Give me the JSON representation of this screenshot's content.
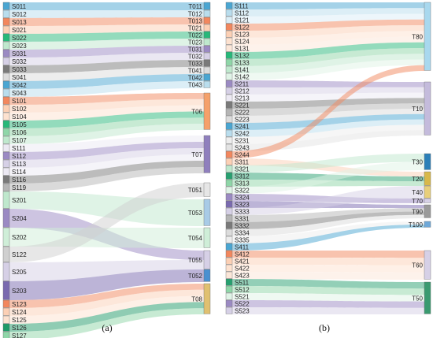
{
  "panel_a": {
    "caption": "(a)",
    "sources": [
      {
        "label": "S011",
        "color": "#4aa6d2"
      },
      {
        "label": "S012",
        "color": "#b9dded"
      },
      {
        "label": "S013",
        "color": "#f2875e"
      },
      {
        "label": "S021",
        "color": "#fcd0b5"
      },
      {
        "label": "S022",
        "color": "#27b879"
      },
      {
        "label": "S023",
        "color": "#bfe8cd"
      },
      {
        "label": "S031",
        "color": "#9b8ac3"
      },
      {
        "label": "S032",
        "color": "#d6d0e6"
      },
      {
        "label": "S033",
        "color": "#7a7a7a"
      },
      {
        "label": "S041",
        "color": "#dcdcdc"
      },
      {
        "label": "S042",
        "color": "#4aa6d2"
      },
      {
        "label": "S043",
        "color": "#b9dded"
      },
      {
        "label": "S101",
        "color": "#f2875e"
      },
      {
        "label": "S102",
        "color": "#fcd0b5"
      },
      {
        "label": "S104",
        "color": "#fde2d0"
      },
      {
        "label": "S105",
        "color": "#27b879"
      },
      {
        "label": "S106",
        "color": "#8fd6a8"
      },
      {
        "label": "S107",
        "color": "#bfe8cd"
      },
      {
        "label": "S111",
        "color": "#ece9f3"
      },
      {
        "label": "S112",
        "color": "#9b8ac3"
      },
      {
        "label": "S113",
        "color": "#d6d0e6"
      },
      {
        "label": "S114",
        "color": "#ece9f3"
      },
      {
        "label": "S116",
        "color": "#7a7a7a"
      },
      {
        "label": "S119",
        "color": "#b5b5b5"
      },
      {
        "label": "S201",
        "color": "#bfe8cd"
      },
      {
        "label": "S204",
        "color": "#9b8ac3"
      },
      {
        "label": "S202",
        "color": "#cfeed8"
      },
      {
        "label": "S122",
        "color": "#d0d0d0"
      },
      {
        "label": "S205",
        "color": "#d6d0e6"
      },
      {
        "label": "S203",
        "color": "#7a6aaf"
      },
      {
        "label": "S123",
        "color": "#f2875e"
      },
      {
        "label": "S124",
        "color": "#fcd0b5"
      },
      {
        "label": "S125",
        "color": "#fde2d0"
      },
      {
        "label": "S126",
        "color": "#1f9a68"
      },
      {
        "label": "S127",
        "color": "#8fd6a8"
      }
    ],
    "targets": [
      {
        "label": "T011",
        "color": "#4aa6d2"
      },
      {
        "label": "T012",
        "color": "#b9dded"
      },
      {
        "label": "T013",
        "color": "#f2875e"
      },
      {
        "label": "T021",
        "color": "#fcd0b5"
      },
      {
        "label": "T022",
        "color": "#27b879"
      },
      {
        "label": "T023",
        "color": "#bfe8cd"
      },
      {
        "label": "T031",
        "color": "#9b8ac3"
      },
      {
        "label": "T032",
        "color": "#d6d0e6"
      },
      {
        "label": "T033",
        "color": "#7a7a7a"
      },
      {
        "label": "T041",
        "color": "#dcdcdc"
      },
      {
        "label": "T042",
        "color": "#4aa6d2"
      },
      {
        "label": "T043",
        "color": "#b9dded"
      },
      {
        "label": "T06",
        "color": "#f5a06a"
      },
      {
        "label": "T07",
        "color": "#8f7fbd"
      },
      {
        "label": "T051",
        "color": "#e6e6e6"
      },
      {
        "label": "T053",
        "color": "#a8cbe6"
      },
      {
        "label": "T054",
        "color": "#cfeed8"
      },
      {
        "label": "T055",
        "color": "#d6d0e6"
      },
      {
        "label": "T052",
        "color": "#4a90d0"
      },
      {
        "label": "T08",
        "color": "#e0c070"
      }
    ]
  },
  "panel_b": {
    "caption": "(b)",
    "sources": [
      {
        "label": "S111",
        "color": "#4aa6d2"
      },
      {
        "label": "S112",
        "color": "#b9dded"
      },
      {
        "label": "S121",
        "color": "#dbeef7"
      },
      {
        "label": "S122",
        "color": "#f2875e"
      },
      {
        "label": "S123",
        "color": "#fcd0b5"
      },
      {
        "label": "S124",
        "color": "#fde2d0"
      },
      {
        "label": "S131",
        "color": "#fbe6d8"
      },
      {
        "label": "S132",
        "color": "#27b879"
      },
      {
        "label": "S133",
        "color": "#8fd6a8"
      },
      {
        "label": "S141",
        "color": "#bfe8cd"
      },
      {
        "label": "S142",
        "color": "#dff3e6"
      },
      {
        "label": "S211",
        "color": "#9b8ac3"
      },
      {
        "label": "S212",
        "color": "#d6d0e6"
      },
      {
        "label": "S213",
        "color": "#ece9f3"
      },
      {
        "label": "S221",
        "color": "#7a7a7a"
      },
      {
        "label": "S222",
        "color": "#b5b5b5"
      },
      {
        "label": "S223",
        "color": "#dcdcdc"
      },
      {
        "label": "S241",
        "color": "#4aa6d2"
      },
      {
        "label": "S242",
        "color": "#b9dded"
      },
      {
        "label": "S231",
        "color": "#ededed"
      },
      {
        "label": "S243",
        "color": "#e3e3e3"
      },
      {
        "label": "S244",
        "color": "#f2875e"
      },
      {
        "label": "S311",
        "color": "#fcd0b5"
      },
      {
        "label": "S321",
        "color": "#bfe8cd"
      },
      {
        "label": "S312",
        "color": "#27a070"
      },
      {
        "label": "S313",
        "color": "#8fd6a8"
      },
      {
        "label": "S322",
        "color": "#dff3e6"
      },
      {
        "label": "S324",
        "color": "#9b8ac3"
      },
      {
        "label": "S323",
        "color": "#7a6aaf"
      },
      {
        "label": "S333",
        "color": "#d6d0e6"
      },
      {
        "label": "S331",
        "color": "#b5b5b5"
      },
      {
        "label": "S332",
        "color": "#7a7a7a"
      },
      {
        "label": "S334",
        "color": "#dcdcdc"
      },
      {
        "label": "S335",
        "color": "#ededed"
      },
      {
        "label": "S411",
        "color": "#4aa6d2"
      },
      {
        "label": "S412",
        "color": "#f2875e"
      },
      {
        "label": "S421",
        "color": "#fcd0b5"
      },
      {
        "label": "S422",
        "color": "#fde2d0"
      },
      {
        "label": "S423",
        "color": "#fbe6d8"
      },
      {
        "label": "S511",
        "color": "#27a070"
      },
      {
        "label": "S512",
        "color": "#8fd6a8"
      },
      {
        "label": "S521",
        "color": "#dff3e6"
      },
      {
        "label": "S522",
        "color": "#9b8ac3"
      },
      {
        "label": "S523",
        "color": "#d6d0e6"
      }
    ],
    "targets": [
      {
        "label": "T80",
        "color": "#a8d8ee"
      },
      {
        "label": "T10",
        "color": "#c4bbdc"
      },
      {
        "label": "T30",
        "color": "#2b7fb8"
      },
      {
        "label": "T20",
        "color": "#d8b84a"
      },
      {
        "label": "T40",
        "color": "#e8cf7a"
      },
      {
        "label": "T70",
        "color": "#d6d0e6"
      },
      {
        "label": "T90",
        "color": "#9a9a9a"
      },
      {
        "label": "T100",
        "color": "#6fa8d8"
      },
      {
        "label": "T60",
        "color": "#d6d0e6"
      },
      {
        "label": "T50",
        "color": "#3a9a70"
      }
    ]
  }
}
